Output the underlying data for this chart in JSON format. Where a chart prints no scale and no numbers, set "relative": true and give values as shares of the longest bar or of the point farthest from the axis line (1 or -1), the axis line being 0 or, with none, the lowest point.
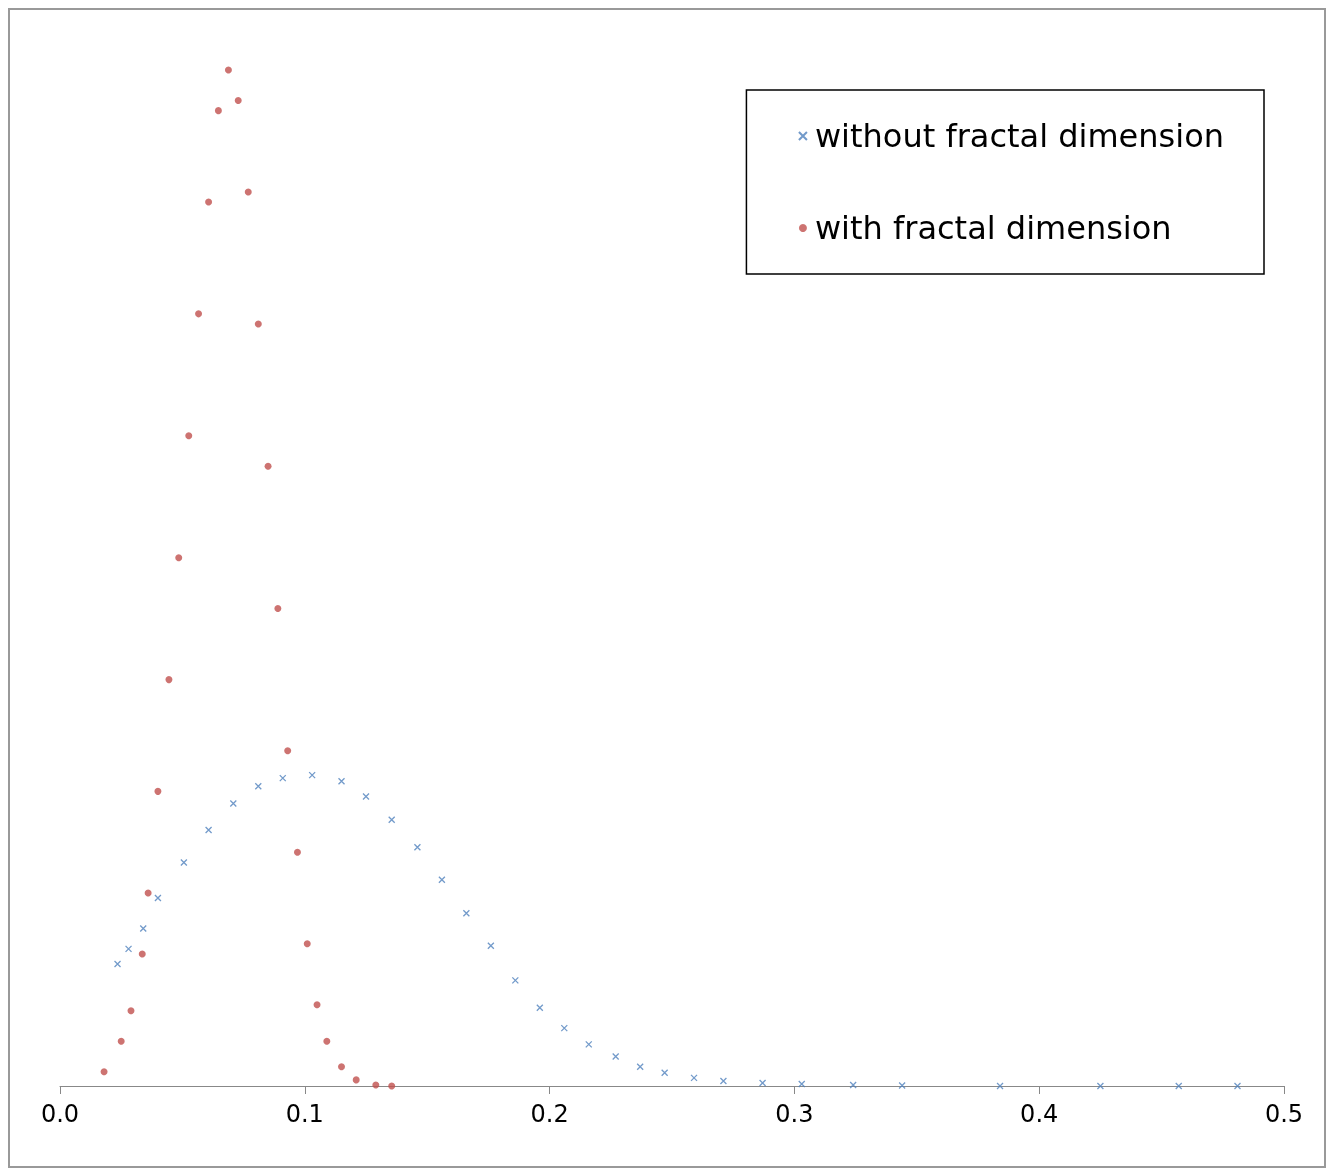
{
  "chart_data": {
    "type": "scatter",
    "relative": true,
    "xlim": [
      0,
      0.5
    ],
    "xticks": [
      {
        "value": 0,
        "label": "0.0"
      },
      0.1,
      0.2,
      0.3,
      0.4,
      0.5
    ],
    "grid": false,
    "legend": "top right",
    "series": [
      {
        "name": "without fractal dimension",
        "color": "#4f81bd",
        "marker": "cross",
        "x": [
          0.0235,
          0.028,
          0.034,
          0.04,
          0.0506,
          0.0607,
          0.0708,
          0.081,
          0.091,
          0.103,
          0.115,
          0.125,
          0.1355,
          0.146,
          0.156,
          0.166,
          0.176,
          0.186,
          0.196,
          0.206,
          0.216,
          0.227,
          0.237,
          0.247,
          0.259,
          0.271,
          0.287,
          0.303,
          0.324,
          0.344,
          0.384,
          0.425,
          0.457,
          0.481
        ],
        "values": [
          0.12,
          0.135,
          0.155,
          0.185,
          0.22,
          0.252,
          0.278,
          0.295,
          0.303,
          0.306,
          0.3,
          0.285,
          0.262,
          0.235,
          0.203,
          0.17,
          0.138,
          0.104,
          0.077,
          0.057,
          0.041,
          0.029,
          0.019,
          0.013,
          0.008,
          0.005,
          0.003,
          0.002,
          0.001,
          0.0005,
          0,
          0,
          0,
          0
        ]
      },
      {
        "name": "with fractal dimension",
        "color": "#c0504d",
        "marker": "circle",
        "x": [
          0.018,
          0.025,
          0.029,
          0.0336,
          0.036,
          0.04,
          0.0445,
          0.0485,
          0.0526,
          0.0566,
          0.0607,
          0.0647,
          0.0688,
          0.0728,
          0.0769,
          0.081,
          0.085,
          0.089,
          0.093,
          0.097,
          0.101,
          0.105,
          0.109,
          0.115,
          0.121,
          0.129,
          0.1355
        ],
        "values": [
          0.014,
          0.044,
          0.074,
          0.13,
          0.19,
          0.29,
          0.4,
          0.52,
          0.64,
          0.76,
          0.87,
          0.96,
          1,
          0.97,
          0.88,
          0.75,
          0.61,
          0.47,
          0.33,
          0.23,
          0.14,
          0.08,
          0.044,
          0.019,
          0.006,
          0.001,
          0
        ]
      }
    ]
  }
}
